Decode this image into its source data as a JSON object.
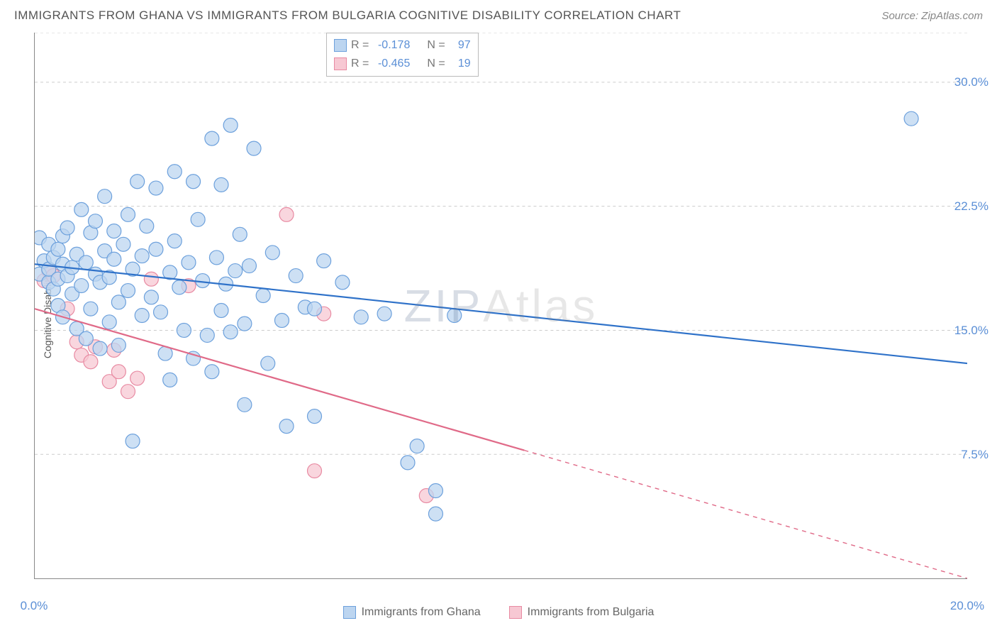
{
  "title": "IMMIGRANTS FROM GHANA VS IMMIGRANTS FROM BULGARIA COGNITIVE DISABILITY CORRELATION CHART",
  "source": "Source: ZipAtlas.com",
  "ylabel": "Cognitive Disability",
  "watermark_a": "ZIP",
  "watermark_b": "Atlas",
  "chart": {
    "type": "scatter",
    "xlim": [
      0,
      20
    ],
    "ylim": [
      0,
      33
    ],
    "xtick_values": [
      0,
      2,
      4,
      6,
      8,
      10,
      12,
      14,
      16,
      18,
      20
    ],
    "xtick_labels": {
      "0": "0.0%",
      "20": "20.0%"
    },
    "ytick_values": [
      7.5,
      15.0,
      22.5,
      30.0,
      33.0
    ],
    "ytick_labels": {
      "7.5": "7.5%",
      "15.0": "15.0%",
      "22.5": "22.5%",
      "30.0": "30.0%"
    },
    "grid_color": "#cccccc",
    "background_color": "#ffffff",
    "axis_color": "#888888",
    "ylabel_color": "#555555",
    "tick_label_color": "#5b8fd6",
    "tick_fontsize": 17,
    "marker_radius": 10,
    "marker_stroke_width": 1.2,
    "trend_line_width": 2.2
  },
  "series": {
    "ghana": {
      "label": "Immigrants from Ghana",
      "R": "-0.178",
      "N": "97",
      "fill": "#bcd5f0",
      "stroke": "#6ca0dc",
      "line_color": "#2f72c9",
      "trend": {
        "x1": 0,
        "y1": 19.0,
        "x2": 20,
        "y2": 13.0,
        "solid_until": 20
      },
      "points": [
        [
          0.1,
          18.4
        ],
        [
          0.1,
          20.6
        ],
        [
          0.2,
          19.2
        ],
        [
          0.3,
          17.9
        ],
        [
          0.3,
          18.7
        ],
        [
          0.3,
          20.2
        ],
        [
          0.4,
          19.4
        ],
        [
          0.4,
          17.5
        ],
        [
          0.5,
          18.1
        ],
        [
          0.5,
          19.9
        ],
        [
          0.5,
          16.5
        ],
        [
          0.6,
          19.0
        ],
        [
          0.6,
          20.7
        ],
        [
          0.6,
          15.8
        ],
        [
          0.7,
          18.3
        ],
        [
          0.7,
          21.2
        ],
        [
          0.8,
          18.8
        ],
        [
          0.8,
          17.2
        ],
        [
          0.9,
          19.6
        ],
        [
          0.9,
          15.1
        ],
        [
          1.0,
          17.7
        ],
        [
          1.0,
          22.3
        ],
        [
          1.1,
          19.1
        ],
        [
          1.1,
          14.5
        ],
        [
          1.2,
          20.9
        ],
        [
          1.2,
          16.3
        ],
        [
          1.3,
          18.4
        ],
        [
          1.3,
          21.6
        ],
        [
          1.4,
          17.9
        ],
        [
          1.4,
          13.9
        ],
        [
          1.5,
          19.8
        ],
        [
          1.5,
          23.1
        ],
        [
          1.6,
          18.2
        ],
        [
          1.6,
          15.5
        ],
        [
          1.7,
          21.0
        ],
        [
          1.7,
          19.3
        ],
        [
          1.8,
          16.7
        ],
        [
          1.8,
          14.1
        ],
        [
          1.9,
          20.2
        ],
        [
          2.0,
          17.4
        ],
        [
          2.0,
          22.0
        ],
        [
          2.1,
          18.7
        ],
        [
          2.1,
          8.3
        ],
        [
          2.2,
          24.0
        ],
        [
          2.3,
          15.9
        ],
        [
          2.3,
          19.5
        ],
        [
          2.4,
          21.3
        ],
        [
          2.5,
          17.0
        ],
        [
          2.6,
          19.9
        ],
        [
          2.6,
          23.6
        ],
        [
          2.7,
          16.1
        ],
        [
          2.8,
          13.6
        ],
        [
          2.9,
          18.5
        ],
        [
          2.9,
          12.0
        ],
        [
          3.0,
          20.4
        ],
        [
          3.0,
          24.6
        ],
        [
          3.1,
          17.6
        ],
        [
          3.2,
          15.0
        ],
        [
          3.3,
          19.1
        ],
        [
          3.4,
          24.0
        ],
        [
          3.4,
          13.3
        ],
        [
          3.5,
          21.7
        ],
        [
          3.6,
          18.0
        ],
        [
          3.7,
          14.7
        ],
        [
          3.8,
          26.6
        ],
        [
          3.8,
          12.5
        ],
        [
          3.9,
          19.4
        ],
        [
          4.0,
          16.2
        ],
        [
          4.0,
          23.8
        ],
        [
          4.1,
          17.8
        ],
        [
          4.2,
          27.4
        ],
        [
          4.2,
          14.9
        ],
        [
          4.3,
          18.6
        ],
        [
          4.4,
          20.8
        ],
        [
          4.5,
          15.4
        ],
        [
          4.5,
          10.5
        ],
        [
          4.6,
          18.9
        ],
        [
          4.7,
          26.0
        ],
        [
          4.9,
          17.1
        ],
        [
          5.0,
          13.0
        ],
        [
          5.1,
          19.7
        ],
        [
          5.3,
          15.6
        ],
        [
          5.4,
          9.2
        ],
        [
          5.6,
          18.3
        ],
        [
          5.8,
          16.4
        ],
        [
          6.0,
          9.8
        ],
        [
          6.0,
          16.3
        ],
        [
          6.2,
          19.2
        ],
        [
          6.6,
          17.9
        ],
        [
          7.0,
          15.8
        ],
        [
          7.5,
          16.0
        ],
        [
          8.0,
          7.0
        ],
        [
          8.2,
          8.0
        ],
        [
          8.6,
          5.3
        ],
        [
          8.6,
          3.9
        ],
        [
          9.0,
          15.9
        ],
        [
          18.8,
          27.8
        ]
      ]
    },
    "bulgaria": {
      "label": "Immigrants from Bulgaria",
      "R": "-0.465",
      "N": "19",
      "fill": "#f7c8d3",
      "stroke": "#e88aa2",
      "line_color": "#e06a88",
      "trend": {
        "x1": 0,
        "y1": 16.3,
        "x2": 20,
        "y2": 0.0,
        "solid_until": 10.5
      },
      "points": [
        [
          0.2,
          18.0
        ],
        [
          0.3,
          18.6
        ],
        [
          0.4,
          18.3
        ],
        [
          0.7,
          16.3
        ],
        [
          0.9,
          14.3
        ],
        [
          1.0,
          13.5
        ],
        [
          1.2,
          13.1
        ],
        [
          1.3,
          14.0
        ],
        [
          1.6,
          11.9
        ],
        [
          1.7,
          13.8
        ],
        [
          1.8,
          12.5
        ],
        [
          2.0,
          11.3
        ],
        [
          2.2,
          12.1
        ],
        [
          2.5,
          18.1
        ],
        [
          3.3,
          17.7
        ],
        [
          5.4,
          22.0
        ],
        [
          6.0,
          6.5
        ],
        [
          6.2,
          16.0
        ],
        [
          8.4,
          5.0
        ]
      ]
    }
  },
  "legend": {
    "box_border": "#bbbbbb",
    "text_color": "#777777",
    "value_color": "#5b8fd6"
  }
}
